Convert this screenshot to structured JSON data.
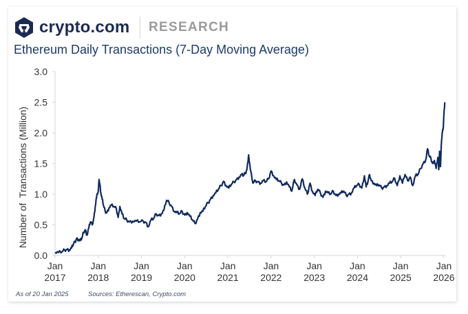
{
  "brand": {
    "name": "crypto.com",
    "section": "RESEARCH",
    "colors": {
      "navy": "#1b2a52",
      "section_gray": "#9a9a9a"
    },
    "logo_icon": "crypto-com-lion-hexagon-icon"
  },
  "footer": {
    "as_of": "As of 20 Jan 2025",
    "sources": "Sources: Etherescan, Crypto.com"
  },
  "chart_data": {
    "type": "line",
    "title": "Ethereum Daily Transactions (7-Day Moving Average)",
    "xlabel": "",
    "ylabel": "Number of  Transactions (Million)",
    "ylim": [
      0,
      3.0
    ],
    "yticks": [
      "0.0",
      "0.5",
      "1.0",
      "1.5",
      "2.0",
      "2.5",
      "3.0"
    ],
    "ytick_values": [
      0,
      0.5,
      1.0,
      1.5,
      2.0,
      2.5,
      3.0
    ],
    "xlim": [
      2017.0,
      2026.0
    ],
    "xticks": [
      {
        "value": 2017,
        "line1": "Jan",
        "line2": "2017"
      },
      {
        "value": 2018,
        "line1": "Jan",
        "line2": "2018"
      },
      {
        "value": 2019,
        "line1": "Jan",
        "line2": "2019"
      },
      {
        "value": 2020,
        "line1": "Jan",
        "line2": "2020"
      },
      {
        "value": 2021,
        "line1": "Jan",
        "line2": "2021"
      },
      {
        "value": 2022,
        "line1": "Jan",
        "line2": "2022"
      },
      {
        "value": 2023,
        "line1": "Jan",
        "line2": "2023"
      },
      {
        "value": 2024,
        "line1": "Jan",
        "line2": "2024"
      },
      {
        "value": 2025,
        "line1": "Jan",
        "line2": "2025"
      },
      {
        "value": 2026,
        "line1": "Jan",
        "line2": "2026"
      }
    ],
    "grid": false,
    "legend": "none",
    "series": [
      {
        "name": "Ethereum Daily Transactions (7DMA)",
        "color": "#0f2a5e",
        "x": [
          2017.0,
          2017.08,
          2017.16,
          2017.22,
          2017.28,
          2017.33,
          2017.38,
          2017.42,
          2017.46,
          2017.5,
          2017.54,
          2017.58,
          2017.62,
          2017.66,
          2017.7,
          2017.74,
          2017.78,
          2017.82,
          2017.86,
          2017.9,
          2017.93,
          2017.96,
          2018.0,
          2018.02,
          2018.04,
          2018.06,
          2018.09,
          2018.12,
          2018.16,
          2018.2,
          2018.25,
          2018.3,
          2018.36,
          2018.42,
          2018.46,
          2018.5,
          2018.55,
          2018.6,
          2018.66,
          2018.72,
          2018.8,
          2018.88,
          2018.96,
          2019.04,
          2019.1,
          2019.16,
          2019.22,
          2019.28,
          2019.34,
          2019.4,
          2019.46,
          2019.52,
          2019.58,
          2019.64,
          2019.7,
          2019.76,
          2019.82,
          2019.88,
          2019.94,
          2020.0,
          2020.06,
          2020.12,
          2020.18,
          2020.24,
          2020.3,
          2020.36,
          2020.42,
          2020.48,
          2020.54,
          2020.6,
          2020.66,
          2020.72,
          2020.78,
          2020.84,
          2020.9,
          2020.96,
          2021.02,
          2021.08,
          2021.14,
          2021.2,
          2021.26,
          2021.32,
          2021.36,
          2021.4,
          2021.44,
          2021.48,
          2021.52,
          2021.58,
          2021.64,
          2021.7,
          2021.76,
          2021.82,
          2021.88,
          2021.94,
          2022.0,
          2022.06,
          2022.12,
          2022.18,
          2022.24,
          2022.3,
          2022.36,
          2022.42,
          2022.48,
          2022.54,
          2022.6,
          2022.66,
          2022.72,
          2022.78,
          2022.84,
          2022.9,
          2022.96,
          2023.02,
          2023.08,
          2023.14,
          2023.2,
          2023.26,
          2023.32,
          2023.38,
          2023.44,
          2023.5,
          2023.56,
          2023.62,
          2023.68,
          2023.74,
          2023.8,
          2023.86,
          2023.92,
          2023.98,
          2024.04,
          2024.1,
          2024.16,
          2024.2,
          2024.24,
          2024.28,
          2024.32,
          2024.38,
          2024.44,
          2024.5,
          2024.56,
          2024.62,
          2024.68,
          2024.74,
          2024.8,
          2024.86,
          2024.92,
          2024.98,
          2025.04,
          2025.1,
          2025.16,
          2025.22,
          2025.28,
          2025.34,
          2025.4,
          2025.46,
          2025.52,
          2025.58,
          2025.62,
          2025.66,
          2025.7,
          2025.74,
          2025.78,
          2025.82,
          2025.86,
          2025.88,
          2025.9,
          2025.92,
          2025.94,
          2025.96,
          2025.98,
          2026.0,
          2026.02
        ],
        "y": [
          0.05,
          0.05,
          0.06,
          0.09,
          0.1,
          0.09,
          0.12,
          0.18,
          0.22,
          0.28,
          0.26,
          0.24,
          0.28,
          0.38,
          0.42,
          0.33,
          0.45,
          0.55,
          0.5,
          0.62,
          0.8,
          0.95,
          1.05,
          1.24,
          1.15,
          1.02,
          0.92,
          0.82,
          0.72,
          0.7,
          0.78,
          0.82,
          0.8,
          0.76,
          0.62,
          0.8,
          0.68,
          0.6,
          0.58,
          0.55,
          0.56,
          0.56,
          0.55,
          0.56,
          0.54,
          0.47,
          0.58,
          0.6,
          0.68,
          0.65,
          0.68,
          0.74,
          0.9,
          0.86,
          0.8,
          0.72,
          0.7,
          0.68,
          0.72,
          0.66,
          0.7,
          0.64,
          0.58,
          0.52,
          0.6,
          0.7,
          0.72,
          0.8,
          0.86,
          0.92,
          0.98,
          1.02,
          1.08,
          1.14,
          1.21,
          1.14,
          1.1,
          1.16,
          1.2,
          1.24,
          1.28,
          1.32,
          1.3,
          1.34,
          1.4,
          1.64,
          1.4,
          1.18,
          1.22,
          1.2,
          1.18,
          1.22,
          1.2,
          1.25,
          1.38,
          1.3,
          1.24,
          1.22,
          1.18,
          1.15,
          1.2,
          1.12,
          1.05,
          1.24,
          1.15,
          1.08,
          1.25,
          1.1,
          1.0,
          1.18,
          1.04,
          0.98,
          1.08,
          1.02,
          0.95,
          1.05,
          1.02,
          1.0,
          1.05,
          0.98,
          1.0,
          1.02,
          1.05,
          0.98,
          1.0,
          1.02,
          1.1,
          1.14,
          1.16,
          1.1,
          1.3,
          1.12,
          1.2,
          1.32,
          1.22,
          1.18,
          1.14,
          1.15,
          1.1,
          1.12,
          1.14,
          1.18,
          1.2,
          1.26,
          1.14,
          1.3,
          1.18,
          1.32,
          1.22,
          1.28,
          1.14,
          1.3,
          1.32,
          1.42,
          1.5,
          1.56,
          1.74,
          1.62,
          1.58,
          1.5,
          1.55,
          1.42,
          1.6,
          1.4,
          1.7,
          1.45,
          1.8,
          2.0,
          2.05,
          2.3,
          2.5
        ]
      }
    ]
  }
}
